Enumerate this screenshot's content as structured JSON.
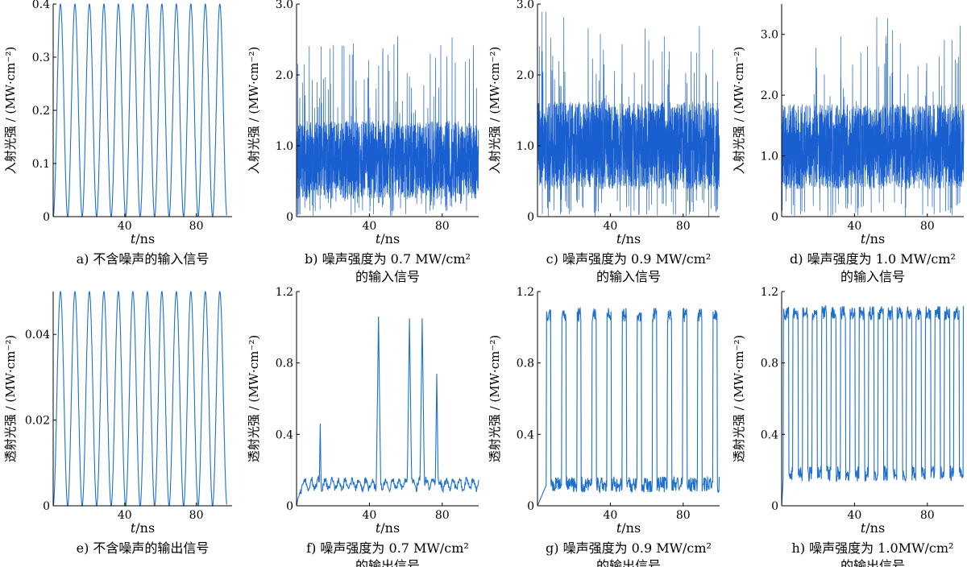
{
  "figure": {
    "line_color": "#1f6fcf",
    "dense_color": "#1a5fd0"
  },
  "chart_data": [
    {
      "id": "a",
      "type": "line",
      "caption": [
        "a) 不含噪声的输入信号"
      ],
      "xlabel_var": "t",
      "xlabel_unit": "/ns",
      "ylabel": "入射光强 / (MW·cm⁻²)",
      "xlim": [
        0,
        100
      ],
      "ylim": [
        0,
        0.4
      ],
      "xticks": [
        "40",
        "80"
      ],
      "xtick_values": [
        40,
        80
      ],
      "yticks": [
        "0",
        "0.1",
        "0.2",
        "0.3",
        "0.4"
      ],
      "ytick_values": [
        0,
        0.1,
        0.2,
        0.3,
        0.4
      ],
      "signal": {
        "kind": "pulse",
        "period": 8.1,
        "offset": 0,
        "peak": 0.4,
        "base": 0,
        "t_end": 97,
        "noise": 0
      }
    },
    {
      "id": "b",
      "type": "line",
      "caption": [
        "b) 噪声强度为 0.7 MW/cm²",
        "的输入信号"
      ],
      "xlabel_var": "t",
      "xlabel_unit": "/ns",
      "ylabel": "入射光强 / (MW·cm⁻²)",
      "xlim": [
        0,
        100
      ],
      "ylim": [
        0,
        3.0
      ],
      "xticks": [
        "40",
        "80"
      ],
      "xtick_values": [
        40,
        80
      ],
      "yticks": [
        "0",
        "1.0",
        "2.0",
        "3.0"
      ],
      "ytick_values": [
        0,
        1.0,
        2.0,
        3.0
      ],
      "signal": {
        "kind": "noise",
        "mean": 0.8,
        "spread": 0.55,
        "max": 2.55,
        "min": 0,
        "t_end": 100,
        "noise": 0.7
      }
    },
    {
      "id": "c",
      "type": "line",
      "caption": [
        "c) 噪声强度为 0.9 MW/cm²",
        "的输入信号"
      ],
      "xlabel_var": "t",
      "xlabel_unit": "/ns",
      "ylabel": "入射光强 / (MW·cm⁻²)",
      "xlim": [
        0,
        100
      ],
      "ylim": [
        0,
        3.0
      ],
      "xticks": [
        "40",
        "80"
      ],
      "xtick_values": [
        40,
        80
      ],
      "yticks": [
        "0",
        "1.0",
        "2.0",
        "3.0"
      ],
      "ytick_values": [
        0,
        1.0,
        2.0,
        3.0
      ],
      "signal": {
        "kind": "noise",
        "mean": 1.0,
        "spread": 0.62,
        "max": 2.9,
        "min": 0,
        "t_end": 100,
        "noise": 0.9
      }
    },
    {
      "id": "d",
      "type": "line",
      "caption": [
        "d) 噪声强度为 1.0 MW/cm²",
        "的输入信号"
      ],
      "xlabel_var": "t",
      "xlabel_unit": "/ns",
      "ylabel": "入射光强 / (MW·cm⁻²)",
      "xlim": [
        0,
        100
      ],
      "ylim": [
        0,
        3.5
      ],
      "xticks": [
        "40",
        "80"
      ],
      "xtick_values": [
        40,
        80
      ],
      "yticks": [
        "0",
        "1.0",
        "2.0",
        "3.0"
      ],
      "ytick_values": [
        0,
        1.0,
        2.0,
        3.0
      ],
      "signal": {
        "kind": "noise",
        "mean": 1.15,
        "spread": 0.7,
        "max": 3.3,
        "min": 0,
        "t_end": 100,
        "noise": 1.0
      }
    },
    {
      "id": "e",
      "type": "line",
      "caption": [
        "e) 不含噪声的输出信号"
      ],
      "xlabel_var": "t",
      "xlabel_unit": "/ns",
      "ylabel": "透射光强 / (MW·cm⁻²)",
      "xlim": [
        0,
        100
      ],
      "ylim": [
        0,
        0.05
      ],
      "xticks": [
        "40",
        "80"
      ],
      "xtick_values": [
        40,
        80
      ],
      "yticks": [
        "0",
        "0.02",
        "0.04"
      ],
      "ytick_values": [
        0,
        0.02,
        0.04
      ],
      "signal": {
        "kind": "pulse",
        "period": 8.1,
        "offset": 0,
        "peak": 0.05,
        "base": 0,
        "t_end": 97,
        "noise": 0
      }
    },
    {
      "id": "f",
      "type": "line",
      "caption": [
        "f) 噪声强度为 0.7 MW/cm²",
        "的输出信号"
      ],
      "xlabel_var": "t",
      "xlabel_unit": "/ns",
      "ylabel": "透射光强 / (MW·cm⁻²)",
      "xlim": [
        0,
        100
      ],
      "ylim": [
        0,
        1.2
      ],
      "xticks": [
        "40",
        "80"
      ],
      "xtick_values": [
        40,
        80
      ],
      "yticks": [
        "0",
        "0.4",
        "0.8",
        "1.2"
      ],
      "ytick_values": [
        0,
        0.4,
        0.8,
        1.2
      ],
      "signal": {
        "kind": "spikes",
        "baseline": 0.12,
        "jitter": 0.04,
        "t_end": 100,
        "spikes": [
          [
            13,
            0.46,
            0.5
          ],
          [
            45,
            1.06,
            1.2
          ],
          [
            62,
            1.05,
            1.2
          ],
          [
            69,
            1.05,
            1.2
          ],
          [
            77,
            0.74,
            0.8
          ]
        ],
        "noise": 0.7
      }
    },
    {
      "id": "g",
      "type": "line",
      "caption": [
        "g) 噪声强度为 0.9 MW/cm²",
        "的输出信号"
      ],
      "xlabel_var": "t",
      "xlabel_unit": "/ns",
      "ylabel": "透射光强 / (MW·cm⁻²)",
      "xlim": [
        0,
        100
      ],
      "ylim": [
        0,
        1.2
      ],
      "xticks": [
        "40",
        "80"
      ],
      "xtick_values": [
        40,
        80
      ],
      "yticks": [
        "0",
        "0.4",
        "0.8",
        "1.2"
      ],
      "ytick_values": [
        0,
        0.4,
        0.8,
        1.2
      ],
      "signal": {
        "kind": "switching",
        "high": 1.07,
        "low": 0.12,
        "period": 8.3,
        "duty": 0.28,
        "start": 5,
        "t_end": 100,
        "noise": 0.9
      }
    },
    {
      "id": "h",
      "type": "line",
      "caption": [
        "h) 噪声强度为 1.0MW/cm²",
        "的输出信号"
      ],
      "xlabel_var": "t",
      "xlabel_unit": "/ns",
      "ylabel": "透射光强 / (MW·cm⁻²)",
      "xlim": [
        0,
        100
      ],
      "ylim": [
        0,
        1.2
      ],
      "xticks": [
        "40",
        "80"
      ],
      "xtick_values": [
        40,
        80
      ],
      "yticks": [
        "0",
        "0.4",
        "0.8",
        "1.2"
      ],
      "ytick_values": [
        0,
        0.4,
        0.8,
        1.2
      ],
      "signal": {
        "kind": "switching",
        "high": 1.08,
        "low": 0.18,
        "period": 5.2,
        "duty": 0.55,
        "start": 1,
        "t_end": 100,
        "noise": 1.0
      }
    }
  ]
}
